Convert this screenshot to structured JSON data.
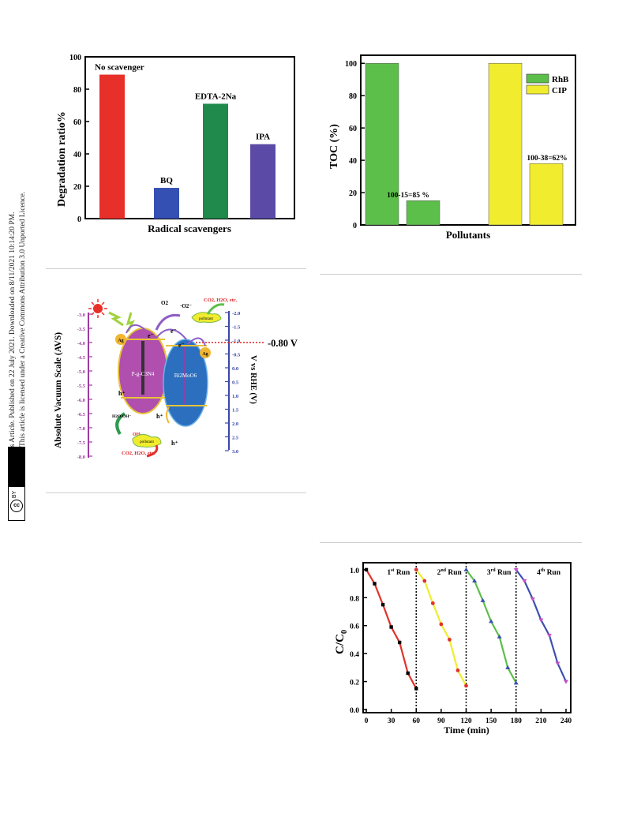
{
  "sidebar": {
    "line1": "Open Access Article. Published on 22 July 2021. Downloaded on 8/11/2021 10:14:20 PM.",
    "line2": "This article is licensed under a Creative Commons Attribution 3.0 Unported Licence.",
    "badge_cc": "cc",
    "badge_by": "BY"
  },
  "chart_data": [
    {
      "type": "bar",
      "xlabel": "Radical scavengers",
      "ylabel": "Degradation ratio%",
      "ylim": [
        0,
        100
      ],
      "yticks": [
        "0",
        "20",
        "40",
        "60",
        "80",
        "100"
      ],
      "categories": [
        "No scavenger",
        "BQ",
        "EDTA-2Na",
        "IPA"
      ],
      "values": [
        89,
        19,
        71,
        46
      ],
      "colors": [
        "#e8302b",
        "#3550b3",
        "#1f8a4c",
        "#5b4aa6"
      ]
    },
    {
      "type": "bar",
      "xlabel": "Pollutants",
      "ylabel": "TOC (%)",
      "ylim": [
        0,
        105
      ],
      "yticks": [
        "0",
        "20",
        "40",
        "60",
        "80",
        "100"
      ],
      "legend": [
        "RhB",
        "CIP"
      ],
      "legend_colors": [
        "#5cbf4a",
        "#f1ec2e"
      ],
      "series": [
        {
          "name": "RhB",
          "values": [
            100,
            15
          ]
        },
        {
          "name": "CIP",
          "values": [
            100,
            38
          ]
        }
      ],
      "annotations": [
        "100-15=85 %",
        "100-38=62%"
      ]
    },
    {
      "type": "line",
      "xlabel": "Time (min)",
      "ylabel": "C/C0",
      "xlim": [
        0,
        240
      ],
      "ylim": [
        0,
        1.05
      ],
      "xticks": [
        "0",
        "30",
        "60",
        "90",
        "120",
        "150",
        "180",
        "210",
        "240"
      ],
      "yticks": [
        "0.0",
        "0.2",
        "0.4",
        "0.6",
        "0.8",
        "1.0"
      ],
      "series": [
        {
          "name": "1st Run",
          "color": "#e0322c",
          "x": [
            0,
            10,
            20,
            30,
            40,
            50,
            60
          ],
          "y": [
            1.0,
            0.9,
            0.75,
            0.59,
            0.48,
            0.26,
            0.15
          ]
        },
        {
          "name": "2nd Run",
          "color": "#f1ec2e",
          "x": [
            60,
            70,
            80,
            90,
            100,
            110,
            120
          ],
          "y": [
            1.0,
            0.92,
            0.76,
            0.61,
            0.5,
            0.28,
            0.17
          ]
        },
        {
          "name": "3rd Run",
          "color": "#5cbf4a",
          "x": [
            120,
            130,
            140,
            150,
            160,
            170,
            180
          ],
          "y": [
            1.0,
            0.92,
            0.78,
            0.63,
            0.52,
            0.3,
            0.19
          ]
        },
        {
          "name": "4th Run",
          "color": "#3d4fb0",
          "x": [
            180,
            190,
            200,
            210,
            220,
            230,
            240
          ],
          "y": [
            1.0,
            0.92,
            0.79,
            0.64,
            0.53,
            0.33,
            0.2
          ]
        }
      ],
      "run_labels": [
        "1st Run",
        "2nd Run",
        "3rd Run",
        "4th Run"
      ]
    }
  ],
  "diagram": {
    "ylabel_left": "Absolute Vacuum Scale (AVS)",
    "ylabel_right": "V vs RHE (V)",
    "left_ticks": [
      "-3.0",
      "-3.5",
      "-4.0",
      "-4.5",
      "-5.0",
      "-5.5",
      "-6.0",
      "-6.5",
      "-7.0",
      "-7.5",
      "-8.0"
    ],
    "right_ticks": [
      "-2.0",
      "-1.5",
      "-1.0",
      "-0.5",
      "0.0",
      "0.5",
      "1.0",
      "1.5",
      "2.0",
      "2.5",
      "3.0"
    ],
    "potential_label": "-0.80 V",
    "left_particle": "P-g-C3N4",
    "right_particle": "Bi2MoO6",
    "ag": "Ag",
    "electron": "e⁻",
    "hole": "h⁺",
    "o2": "O2",
    "superoxide": "·O2⁻",
    "pollutant": "pollutant",
    "products_top": "CO2, H2O, etc.",
    "products_bottom": "CO2, H2O, etc.",
    "h2o": "H2O/OH⁻",
    "oh_radical": "OH·",
    "colors": {
      "left_axis": "#a03aa3",
      "right_axis": "#3a47a8",
      "potential_line": "#e02020",
      "left_particle": "#b04fae",
      "right_particle": "#2c6fbf"
    }
  }
}
